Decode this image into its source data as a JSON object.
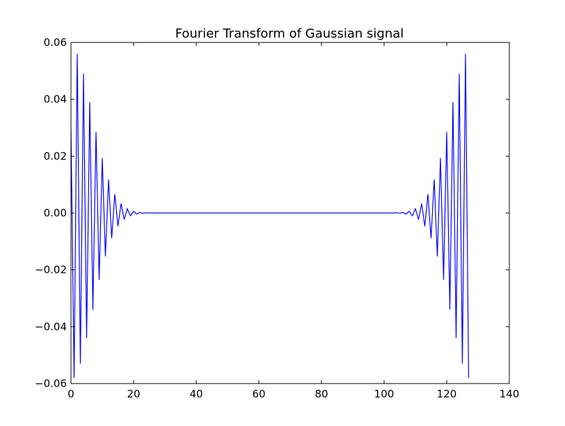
{
  "chart_data": {
    "type": "line",
    "title": "Fourier Transform of Gaussian signal",
    "xlabel": "",
    "ylabel": "",
    "xlim": [
      0,
      140
    ],
    "ylim": [
      -0.06,
      0.06
    ],
    "x_ticks": [
      0,
      20,
      40,
      60,
      80,
      100,
      120,
      140
    ],
    "x_tick_labels": [
      "0",
      "20",
      "40",
      "60",
      "80",
      "100",
      "120",
      "140"
    ],
    "y_ticks": [
      0.06,
      0.04,
      0.02,
      0.0,
      -0.02,
      -0.04,
      -0.06
    ],
    "y_tick_labels": [
      "0.06",
      "0.04",
      "0.02",
      "0.00",
      "−0.02",
      "−0.04",
      "−0.06"
    ],
    "grid": false,
    "legend": "none",
    "line_color": "#0000ff",
    "series": [
      {
        "x": [
          0,
          1,
          2,
          3,
          4,
          5,
          6,
          7,
          8,
          9,
          10,
          11,
          12,
          13,
          14,
          15,
          16,
          17,
          18,
          19,
          20,
          21,
          22,
          23,
          24,
          25,
          26,
          27,
          28,
          29,
          30,
          31,
          32,
          33,
          34,
          35,
          36,
          37,
          38,
          39,
          40,
          41,
          42,
          43,
          44,
          45,
          46,
          47,
          48,
          49,
          50,
          51,
          52,
          53,
          54,
          55,
          56,
          57,
          58,
          59,
          60,
          61,
          62,
          63,
          64,
          65,
          66,
          67,
          68,
          69,
          70,
          71,
          72,
          73,
          74,
          75,
          76,
          77,
          78,
          79,
          80,
          81,
          82,
          83,
          84,
          85,
          86,
          87,
          88,
          89,
          90,
          91,
          92,
          93,
          94,
          95,
          96,
          97,
          98,
          99,
          100,
          101,
          102,
          103,
          104,
          105,
          106,
          107,
          108,
          109,
          110,
          111,
          112,
          113,
          114,
          115,
          116,
          117,
          118,
          119,
          120,
          121,
          122,
          123,
          124,
          125,
          126,
          127
        ],
        "y": [
          0.03,
          -0.058,
          0.056,
          -0.053,
          0.049,
          -0.044,
          0.039,
          -0.034,
          0.0285,
          -0.0235,
          0.0193,
          -0.0153,
          0.0118,
          -0.0089,
          0.0066,
          -0.0047,
          0.0033,
          -0.0023,
          0.0015,
          -0.001,
          0.0006,
          -0.0004,
          0.0002,
          -0.0001,
          0.0001,
          0,
          0,
          0,
          0,
          0,
          0,
          0,
          0,
          0,
          0,
          0,
          0,
          0,
          0,
          0,
          0,
          0,
          0,
          0,
          0,
          0,
          0,
          0,
          0,
          0,
          0,
          0,
          0,
          0,
          0,
          0,
          0,
          0,
          0,
          0,
          0,
          0,
          0,
          0,
          0,
          0,
          0,
          0,
          0,
          0,
          0,
          0,
          0,
          0,
          0,
          0,
          0,
          0,
          0,
          0,
          0,
          0,
          0,
          0,
          0,
          0,
          0,
          0,
          0,
          0,
          0,
          0,
          0,
          0,
          0,
          0,
          0,
          0,
          0,
          0,
          0,
          0,
          0,
          0,
          0.0001,
          -0.0001,
          0.0002,
          -0.0004,
          0.0006,
          -0.001,
          0.0015,
          -0.0023,
          0.0033,
          -0.0047,
          0.0066,
          -0.0089,
          0.0118,
          -0.0153,
          0.0193,
          -0.0235,
          0.0285,
          -0.034,
          0.039,
          -0.044,
          0.049,
          -0.053,
          0.056,
          -0.058
        ]
      }
    ]
  }
}
